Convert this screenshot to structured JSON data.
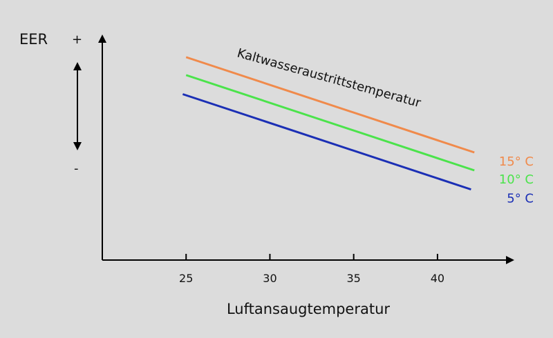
{
  "chart_data": {
    "type": "line",
    "xlabel": "Luftansaugtemperatur",
    "ylabel": "EER",
    "y_plus": "+",
    "y_minus": "-",
    "annotation": "Kaltwasseraustrittstemperatur",
    "x_ticks": [
      25,
      30,
      35,
      40
    ],
    "xlim": [
      20,
      44.5
    ],
    "ylim": [
      0,
      1
    ],
    "grid": false,
    "x_range": [
      24.8,
      42.2
    ],
    "series": [
      {
        "name": "15° C",
        "color": "#f08a4b",
        "x": [
          25.0,
          42.2
        ],
        "y": [
          0.905,
          0.48
        ]
      },
      {
        "name": "10° C",
        "color": "#4be34b",
        "x": [
          25.0,
          42.2
        ],
        "y": [
          0.825,
          0.4
        ]
      },
      {
        "name": "5° C",
        "color": "#1b2fb5",
        "x": [
          24.8,
          42.0
        ],
        "y": [
          0.74,
          0.315
        ]
      }
    ]
  }
}
